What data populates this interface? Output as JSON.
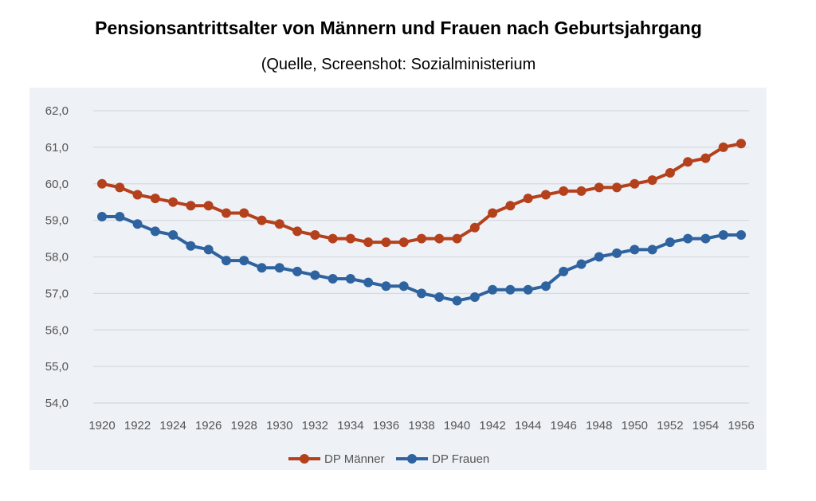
{
  "chart_data": {
    "type": "line",
    "title": "Pensionsantrittsalter von Männern und Frauen nach Geburtsjahrgang",
    "subtitle": "(Quelle, Screenshot: Sozialministerium",
    "xlabel": "",
    "ylabel": "",
    "x": [
      1920,
      1921,
      1922,
      1923,
      1924,
      1925,
      1926,
      1927,
      1928,
      1929,
      1930,
      1931,
      1932,
      1933,
      1934,
      1935,
      1936,
      1937,
      1938,
      1939,
      1940,
      1941,
      1942,
      1943,
      1944,
      1945,
      1946,
      1947,
      1948,
      1949,
      1950,
      1951,
      1952,
      1953,
      1954,
      1955,
      1956
    ],
    "x_tick_labels": [
      "1920",
      "1922",
      "1924",
      "1926",
      "1928",
      "1930",
      "1932",
      "1934",
      "1936",
      "1938",
      "1940",
      "1942",
      "1944",
      "1946",
      "1948",
      "1950",
      "1952",
      "1954",
      "1956"
    ],
    "y_tick_labels": [
      "54,0",
      "55,0",
      "56,0",
      "57,0",
      "58,0",
      "59,0",
      "60,0",
      "61,0",
      "62,0"
    ],
    "ylim": [
      54,
      62
    ],
    "grid": true,
    "legend_position": "bottom",
    "series": [
      {
        "name": "DP Männer",
        "color": "#b5401c",
        "values": [
          60.0,
          59.9,
          59.7,
          59.6,
          59.5,
          59.4,
          59.4,
          59.2,
          59.2,
          59.0,
          58.9,
          58.7,
          58.6,
          58.5,
          58.5,
          58.4,
          58.4,
          58.4,
          58.5,
          58.5,
          58.5,
          58.8,
          59.2,
          59.4,
          59.6,
          59.7,
          59.8,
          59.8,
          59.9,
          59.9,
          60.0,
          60.1,
          60.3,
          60.6,
          60.7,
          61.0,
          61.1
        ]
      },
      {
        "name": "DP Frauen",
        "color": "#2e63a0",
        "values": [
          59.1,
          59.1,
          58.9,
          58.7,
          58.6,
          58.3,
          58.2,
          57.9,
          57.9,
          57.7,
          57.7,
          57.6,
          57.5,
          57.4,
          57.4,
          57.3,
          57.2,
          57.2,
          57.0,
          56.9,
          56.8,
          56.9,
          57.1,
          57.1,
          57.1,
          57.2,
          57.6,
          57.8,
          58.0,
          58.1,
          58.2,
          58.2,
          58.4,
          58.5,
          58.5,
          58.6,
          58.6
        ]
      }
    ]
  }
}
